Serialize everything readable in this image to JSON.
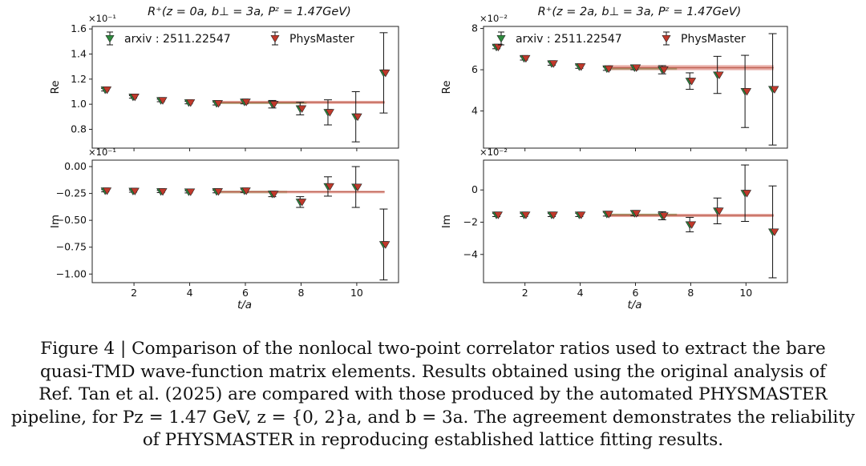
{
  "caption": {
    "lines": [
      "Figure 4 | Comparison of the nonlocal two-point correlator ratios used to extract the bare",
      "quasi-TMD wave-function matrix elements. Results obtained using the original analysis of",
      "Ref. Tan et al. (2025) are compared with those produced by the automated PHYSMASTER",
      "pipeline, for Pz = 1.47 GeV, z = {0, 2}a, and b = 3a. The agreement demonstrates the reliability",
      "of PHYSMASTER in reproducing established lattice fitting results."
    ]
  },
  "colors": {
    "arxiv_marker": "#2e8b3e",
    "physmaster_marker": "#c0392b",
    "arxiv_band": "#8fd08f",
    "physmaster_band": "#d9776b",
    "errorbar": "#111111"
  },
  "chart_data": [
    {
      "type": "scatter",
      "panel": "top-left",
      "title": "R⁺(z = 0a, b⊥ = 3a, Pᶻ = 1.47GeV)",
      "ylabel": "Re",
      "xlabel": "",
      "scale_label": "×10⁻¹",
      "xlim": [
        0.5,
        11.5
      ],
      "ylim": [
        0.65,
        1.62
      ],
      "yticks": [
        0.8,
        1.0,
        1.2,
        1.4,
        1.6
      ],
      "ytick_labels": [
        "0.8",
        "1.0",
        "1.2",
        "1.4",
        "1.6"
      ],
      "xticks": [
        2,
        4,
        6,
        8,
        10
      ],
      "xtick_labels": [
        "",
        "",
        "",
        "",
        ""
      ],
      "legend": {
        "placement": "top",
        "entries": [
          "arxiv : 2511.22547",
          "PhysMaster"
        ]
      },
      "series": [
        {
          "name": "arxiv : 2511.22547",
          "x": [
            1,
            2,
            3,
            4,
            5,
            6,
            7,
            8,
            9,
            10,
            11
          ],
          "y": [
            1.115,
            1.058,
            1.03,
            1.013,
            1.006,
            1.018,
            1.0,
            0.965,
            0.935,
            0.9,
            1.25
          ],
          "err": [
            0.01,
            0.01,
            0.01,
            0.01,
            0.012,
            0.015,
            0.03,
            0.05,
            0.1,
            0.2,
            0.32
          ]
        },
        {
          "name": "PhysMaster",
          "x": [
            1,
            2,
            3,
            4,
            5,
            6,
            7,
            8,
            9,
            10,
            11
          ],
          "y": [
            1.115,
            1.058,
            1.03,
            1.013,
            1.006,
            1.018,
            1.0,
            0.965,
            0.935,
            0.9,
            1.25
          ],
          "err": [
            0.01,
            0.01,
            0.01,
            0.01,
            0.012,
            0.015,
            0.03,
            0.05,
            0.1,
            0.2,
            0.32
          ]
        }
      ],
      "fit_bands": [
        {
          "series": "arxiv : 2511.22547",
          "x": [
            5,
            8.2
          ],
          "value": 1.012,
          "halfwidth": 0.008
        },
        {
          "series": "PhysMaster",
          "x": [
            5,
            11
          ],
          "value": 1.015,
          "halfwidth": 0.012
        }
      ]
    },
    {
      "type": "scatter",
      "panel": "top-right",
      "title": "R⁺(z = 2a, b⊥ = 3a, Pᶻ = 1.47GeV)",
      "ylabel": "Re",
      "xlabel": "",
      "scale_label": "×10⁻²",
      "xlim": [
        0.5,
        11.5
      ],
      "ylim": [
        2.2,
        8.1
      ],
      "yticks": [
        4,
        6,
        8
      ],
      "ytick_labels": [
        "4",
        "6",
        "8"
      ],
      "xticks": [
        2,
        4,
        6,
        8,
        10
      ],
      "xtick_labels": [
        "",
        "",
        "",
        "",
        ""
      ],
      "legend": {
        "placement": "top",
        "entries": [
          "arxiv : 2511.22547",
          "PhysMaster"
        ]
      },
      "series": [
        {
          "name": "arxiv : 2511.22547",
          "x": [
            1,
            2,
            3,
            4,
            5,
            6,
            7,
            8,
            9,
            10,
            11
          ],
          "y": [
            7.1,
            6.55,
            6.3,
            6.15,
            6.05,
            6.1,
            6.0,
            5.45,
            5.75,
            4.95,
            5.05
          ],
          "err": [
            0.08,
            0.08,
            0.08,
            0.08,
            0.08,
            0.1,
            0.2,
            0.4,
            0.9,
            1.75,
            2.7
          ]
        },
        {
          "name": "PhysMaster",
          "x": [
            1,
            2,
            3,
            4,
            5,
            6,
            7,
            8,
            9,
            10,
            11
          ],
          "y": [
            7.1,
            6.55,
            6.3,
            6.15,
            6.05,
            6.1,
            6.0,
            5.45,
            5.75,
            4.95,
            5.05
          ],
          "err": [
            0.08,
            0.08,
            0.08,
            0.08,
            0.08,
            0.1,
            0.2,
            0.4,
            0.9,
            1.75,
            2.7
          ]
        }
      ],
      "fit_bands": [
        {
          "series": "arxiv : 2511.22547",
          "x": [
            5,
            7.5
          ],
          "value": 6.05,
          "halfwidth": 0.06
        },
        {
          "series": "PhysMaster",
          "x": [
            5,
            11
          ],
          "value": 6.1,
          "halfwidth": 0.12
        }
      ]
    },
    {
      "type": "scatter",
      "panel": "bottom-left",
      "title": "",
      "ylabel": "Im",
      "xlabel": "t/a",
      "scale_label": "×10⁻¹",
      "xlim": [
        0.5,
        11.5
      ],
      "ylim": [
        -1.08,
        0.06
      ],
      "yticks": [
        0.0,
        -0.25,
        -0.5,
        -0.75,
        -1.0
      ],
      "ytick_labels": [
        "0.00",
        "−0.25",
        "−0.50",
        "−0.75",
        "−1.00"
      ],
      "xticks": [
        2,
        4,
        6,
        8,
        10
      ],
      "xtick_labels": [
        "2",
        "4",
        "6",
        "8",
        "10"
      ],
      "series": [
        {
          "name": "arxiv : 2511.22547",
          "x": [
            1,
            2,
            3,
            4,
            5,
            6,
            7,
            8,
            9,
            10,
            11
          ],
          "y": [
            -0.225,
            -0.228,
            -0.232,
            -0.235,
            -0.232,
            -0.225,
            -0.255,
            -0.33,
            -0.185,
            -0.19,
            -0.725
          ],
          "err": [
            0.01,
            0.01,
            0.01,
            0.01,
            0.012,
            0.015,
            0.025,
            0.05,
            0.09,
            0.19,
            0.33
          ]
        },
        {
          "name": "PhysMaster",
          "x": [
            1,
            2,
            3,
            4,
            5,
            6,
            7,
            8,
            9,
            10,
            11
          ],
          "y": [
            -0.225,
            -0.228,
            -0.232,
            -0.235,
            -0.232,
            -0.225,
            -0.255,
            -0.33,
            -0.185,
            -0.19,
            -0.725
          ],
          "err": [
            0.01,
            0.01,
            0.01,
            0.01,
            0.012,
            0.015,
            0.025,
            0.05,
            0.09,
            0.19,
            0.33
          ]
        }
      ],
      "fit_bands": [
        {
          "series": "arxiv : 2511.22547",
          "x": [
            5,
            7.5
          ],
          "value": -0.232,
          "halfwidth": 0.006
        },
        {
          "series": "PhysMaster",
          "x": [
            5,
            11
          ],
          "value": -0.234,
          "halfwidth": 0.008
        }
      ]
    },
    {
      "type": "scatter",
      "panel": "bottom-right",
      "title": "",
      "ylabel": "Im",
      "xlabel": "t/a",
      "scale_label": "×10⁻²",
      "xlim": [
        0.5,
        11.5
      ],
      "ylim": [
        -5.75,
        1.85
      ],
      "yticks": [
        0,
        -2,
        -4
      ],
      "ytick_labels": [
        "0",
        "−2",
        "−4"
      ],
      "xticks": [
        2,
        4,
        6,
        8,
        10
      ],
      "xtick_labels": [
        "2",
        "4",
        "6",
        "8",
        "10"
      ],
      "series": [
        {
          "name": "arxiv : 2511.22547",
          "x": [
            1,
            2,
            3,
            4,
            5,
            6,
            7,
            8,
            9,
            10,
            11
          ],
          "y": [
            -1.55,
            -1.55,
            -1.55,
            -1.55,
            -1.5,
            -1.45,
            -1.6,
            -2.15,
            -1.3,
            -0.2,
            -2.6
          ],
          "err": [
            0.1,
            0.1,
            0.1,
            0.1,
            0.12,
            0.15,
            0.25,
            0.45,
            0.8,
            1.75,
            2.85
          ]
        },
        {
          "name": "PhysMaster",
          "x": [
            1,
            2,
            3,
            4,
            5,
            6,
            7,
            8,
            9,
            10,
            11
          ],
          "y": [
            -1.55,
            -1.55,
            -1.55,
            -1.55,
            -1.5,
            -1.45,
            -1.6,
            -2.15,
            -1.3,
            -0.2,
            -2.6
          ],
          "err": [
            0.1,
            0.1,
            0.1,
            0.1,
            0.12,
            0.15,
            0.25,
            0.45,
            0.8,
            1.75,
            2.85
          ]
        }
      ],
      "fit_bands": [
        {
          "series": "arxiv : 2511.22547",
          "x": [
            5,
            7.5
          ],
          "value": -1.52,
          "halfwidth": 0.05
        },
        {
          "series": "PhysMaster",
          "x": [
            5,
            11
          ],
          "value": -1.58,
          "halfwidth": 0.1
        }
      ]
    }
  ]
}
